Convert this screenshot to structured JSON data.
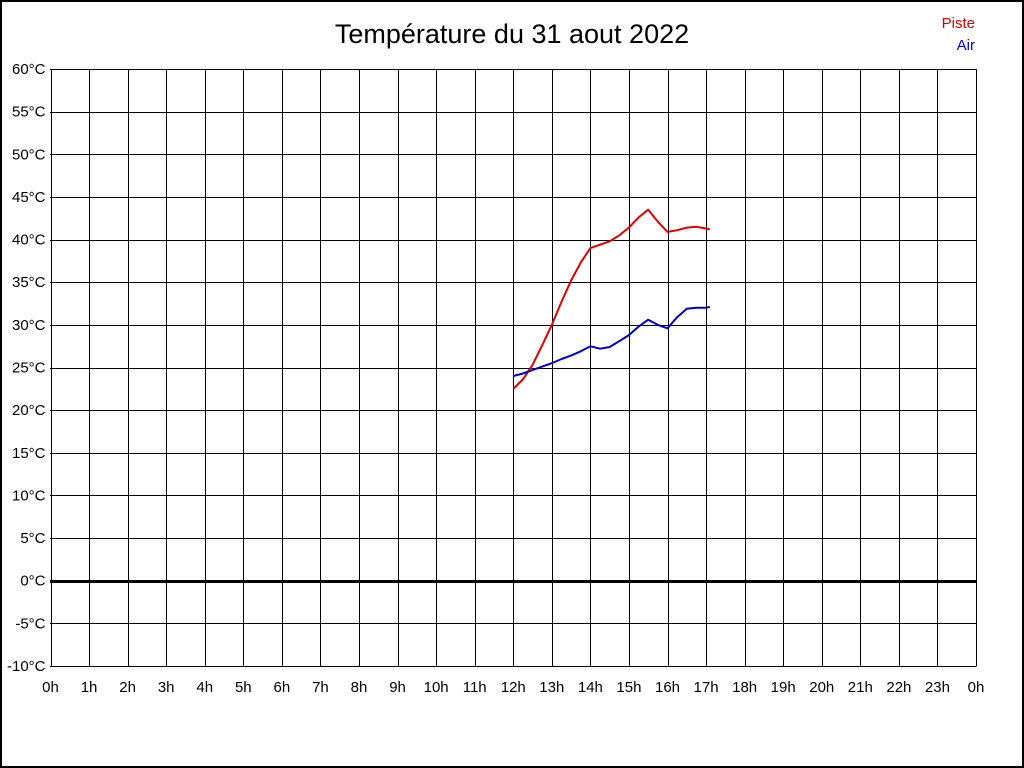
{
  "title": "Température du 31 aout 2022",
  "legend": [
    {
      "label": "Piste",
      "color": "#dd0000"
    },
    {
      "label": "Air",
      "color": "#0000cc"
    }
  ],
  "chart_data": {
    "type": "line",
    "title": "Température du 31 aout 2022",
    "xlabel": "",
    "ylabel": "",
    "xlim": [
      0,
      24
    ],
    "ylim": [
      -10,
      60
    ],
    "grid": true,
    "legend_position": "top-right",
    "zero_line": {
      "value": 0,
      "width": 3,
      "color": "#000000"
    },
    "x_ticks": [
      {
        "v": 0,
        "label": "0h"
      },
      {
        "v": 1,
        "label": "1h"
      },
      {
        "v": 2,
        "label": "2h"
      },
      {
        "v": 3,
        "label": "3h"
      },
      {
        "v": 4,
        "label": "4h"
      },
      {
        "v": 5,
        "label": "5h"
      },
      {
        "v": 6,
        "label": "6h"
      },
      {
        "v": 7,
        "label": "7h"
      },
      {
        "v": 8,
        "label": "8h"
      },
      {
        "v": 9,
        "label": "9h"
      },
      {
        "v": 10,
        "label": "10h"
      },
      {
        "v": 11,
        "label": "11h"
      },
      {
        "v": 12,
        "label": "12h"
      },
      {
        "v": 13,
        "label": "13h"
      },
      {
        "v": 14,
        "label": "14h"
      },
      {
        "v": 15,
        "label": "15h"
      },
      {
        "v": 16,
        "label": "16h"
      },
      {
        "v": 17,
        "label": "17h"
      },
      {
        "v": 18,
        "label": "18h"
      },
      {
        "v": 19,
        "label": "19h"
      },
      {
        "v": 20,
        "label": "20h"
      },
      {
        "v": 21,
        "label": "21h"
      },
      {
        "v": 22,
        "label": "22h"
      },
      {
        "v": 23,
        "label": "23h"
      },
      {
        "v": 24,
        "label": "0h"
      }
    ],
    "y_ticks": [
      {
        "v": 60,
        "label": "60°C"
      },
      {
        "v": 55,
        "label": "55°C"
      },
      {
        "v": 50,
        "label": "50°C"
      },
      {
        "v": 45,
        "label": "45°C"
      },
      {
        "v": 40,
        "label": "40°C"
      },
      {
        "v": 35,
        "label": "35°C"
      },
      {
        "v": 30,
        "label": "30°C"
      },
      {
        "v": 25,
        "label": "25°C"
      },
      {
        "v": 20,
        "label": "20°C"
      },
      {
        "v": 15,
        "label": "15°C"
      },
      {
        "v": 10,
        "label": "10°C"
      },
      {
        "v": 5,
        "label": "5°C"
      },
      {
        "v": 0,
        "label": "0°C"
      },
      {
        "v": -5,
        "label": "-5°C"
      },
      {
        "v": -10,
        "label": "-10°C"
      }
    ],
    "series": [
      {
        "name": "Piste",
        "color": "#dd0000",
        "x": [
          12,
          12.25,
          12.5,
          12.75,
          13,
          13.25,
          13.5,
          13.75,
          14,
          14.25,
          14.5,
          14.75,
          15,
          15.25,
          15.5,
          15.75,
          16,
          16.25,
          16.5,
          16.75,
          17,
          17.1
        ],
        "y": [
          22.5,
          23.6,
          25.3,
          27.6,
          30.0,
          32.7,
          35.2,
          37.3,
          39.0,
          39.4,
          39.8,
          40.5,
          41.4,
          42.6,
          43.5,
          42.1,
          40.9,
          41.1,
          41.4,
          41.5,
          41.3,
          41.2
        ]
      },
      {
        "name": "Air",
        "color": "#0000cc",
        "x": [
          12,
          12.25,
          12.5,
          12.75,
          13,
          13.25,
          13.5,
          13.75,
          14,
          14.25,
          14.5,
          14.75,
          15,
          15.25,
          15.5,
          15.75,
          16,
          16.25,
          16.5,
          16.75,
          17,
          17.1
        ],
        "y": [
          24.0,
          24.3,
          24.7,
          25.1,
          25.5,
          26.0,
          26.4,
          26.9,
          27.5,
          27.2,
          27.4,
          28.1,
          28.8,
          29.8,
          30.6,
          30.0,
          29.6,
          30.9,
          31.9,
          32.0,
          32.0,
          32.1
        ]
      }
    ]
  }
}
